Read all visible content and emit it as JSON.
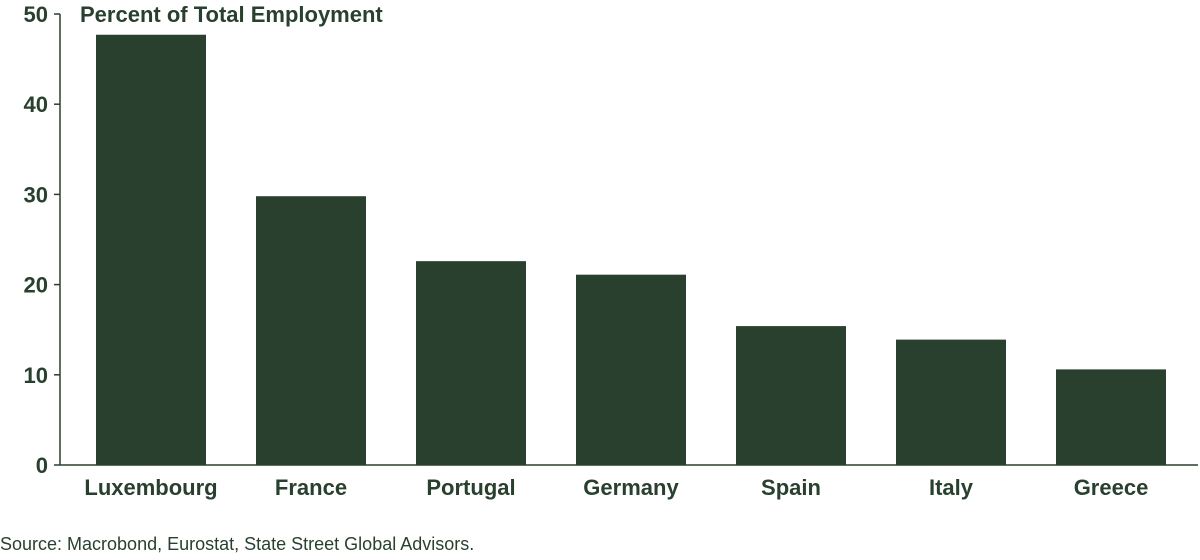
{
  "chart_data": {
    "type": "bar",
    "ylabel": "Percent of Total Employment",
    "categories": [
      "Luxembourg",
      "France",
      "Portugal",
      "Germany",
      "Spain",
      "Italy",
      "Greece"
    ],
    "values": [
      47.7,
      29.8,
      22.6,
      21.1,
      15.4,
      13.9,
      10.6
    ],
    "ylim": [
      0,
      50
    ],
    "yticks": [
      0,
      10,
      20,
      30,
      40,
      50
    ],
    "grid": false,
    "legend": "none",
    "colors": {
      "bar": "#29402f",
      "text": "#29402f"
    }
  },
  "source": "Source: Macrobond, Eurostat, State Street Global Advisors."
}
